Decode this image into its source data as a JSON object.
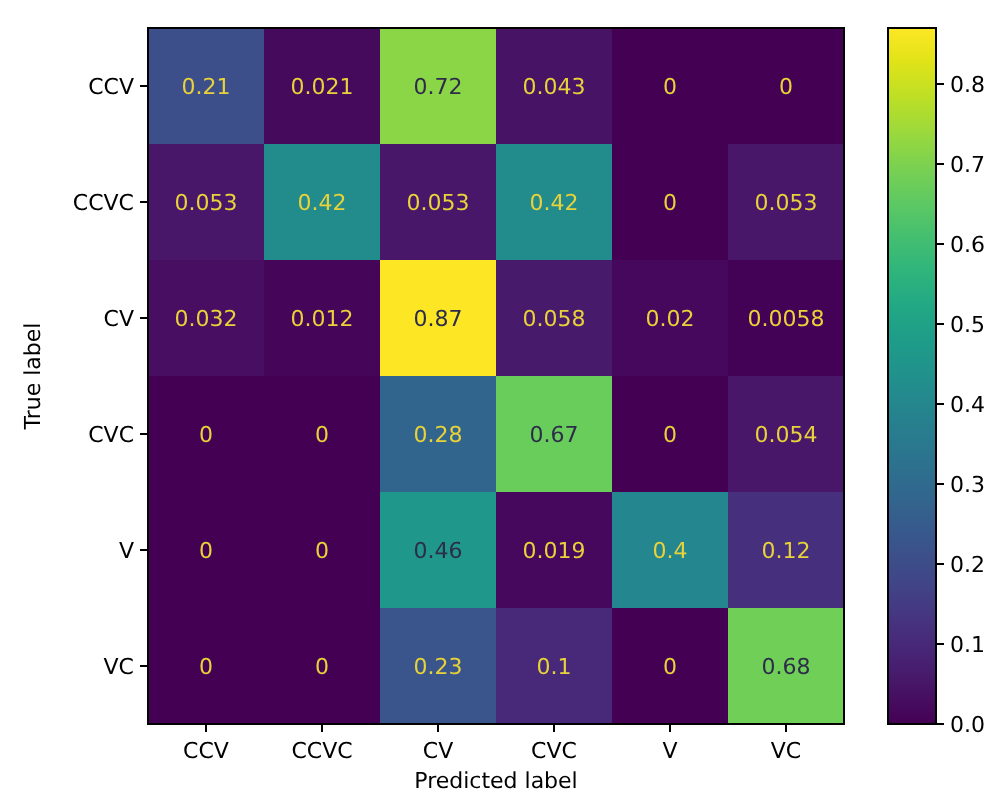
{
  "chart_data": {
    "type": "heatmap",
    "xlabel": "Predicted label",
    "ylabel": "True label",
    "categories": [
      "CCV",
      "CCVC",
      "CV",
      "CVC",
      "V",
      "VC"
    ],
    "y_categories": [
      "CCV",
      "CCVC",
      "CV",
      "CVC",
      "V",
      "VC"
    ],
    "cells": [
      [
        0.21,
        0.021,
        0.72,
        0.043,
        0,
        0
      ],
      [
        0.053,
        0.42,
        0.053,
        0.42,
        0,
        0.053
      ],
      [
        0.032,
        0.012,
        0.87,
        0.058,
        0.02,
        0.0058
      ],
      [
        0,
        0,
        0.28,
        0.67,
        0,
        0.054
      ],
      [
        0,
        0,
        0.46,
        0.019,
        0.4,
        0.12
      ],
      [
        0,
        0,
        0.23,
        0.1,
        0,
        0.68
      ]
    ],
    "data_labels": true,
    "clim": [
      0,
      0.87
    ],
    "cticks": [
      {
        "value": 0,
        "label": "0.0"
      },
      {
        "value": 0.1,
        "label": "0.1"
      },
      {
        "value": 0.2,
        "label": "0.2"
      },
      {
        "value": 0.3,
        "label": "0.3"
      },
      {
        "value": 0.4,
        "label": "0.4"
      },
      {
        "value": 0.5,
        "label": "0.5"
      },
      {
        "value": 0.6,
        "label": "0.6"
      },
      {
        "value": 0.7,
        "label": "0.7"
      },
      {
        "value": 0.8,
        "label": "0.8"
      }
    ]
  }
}
